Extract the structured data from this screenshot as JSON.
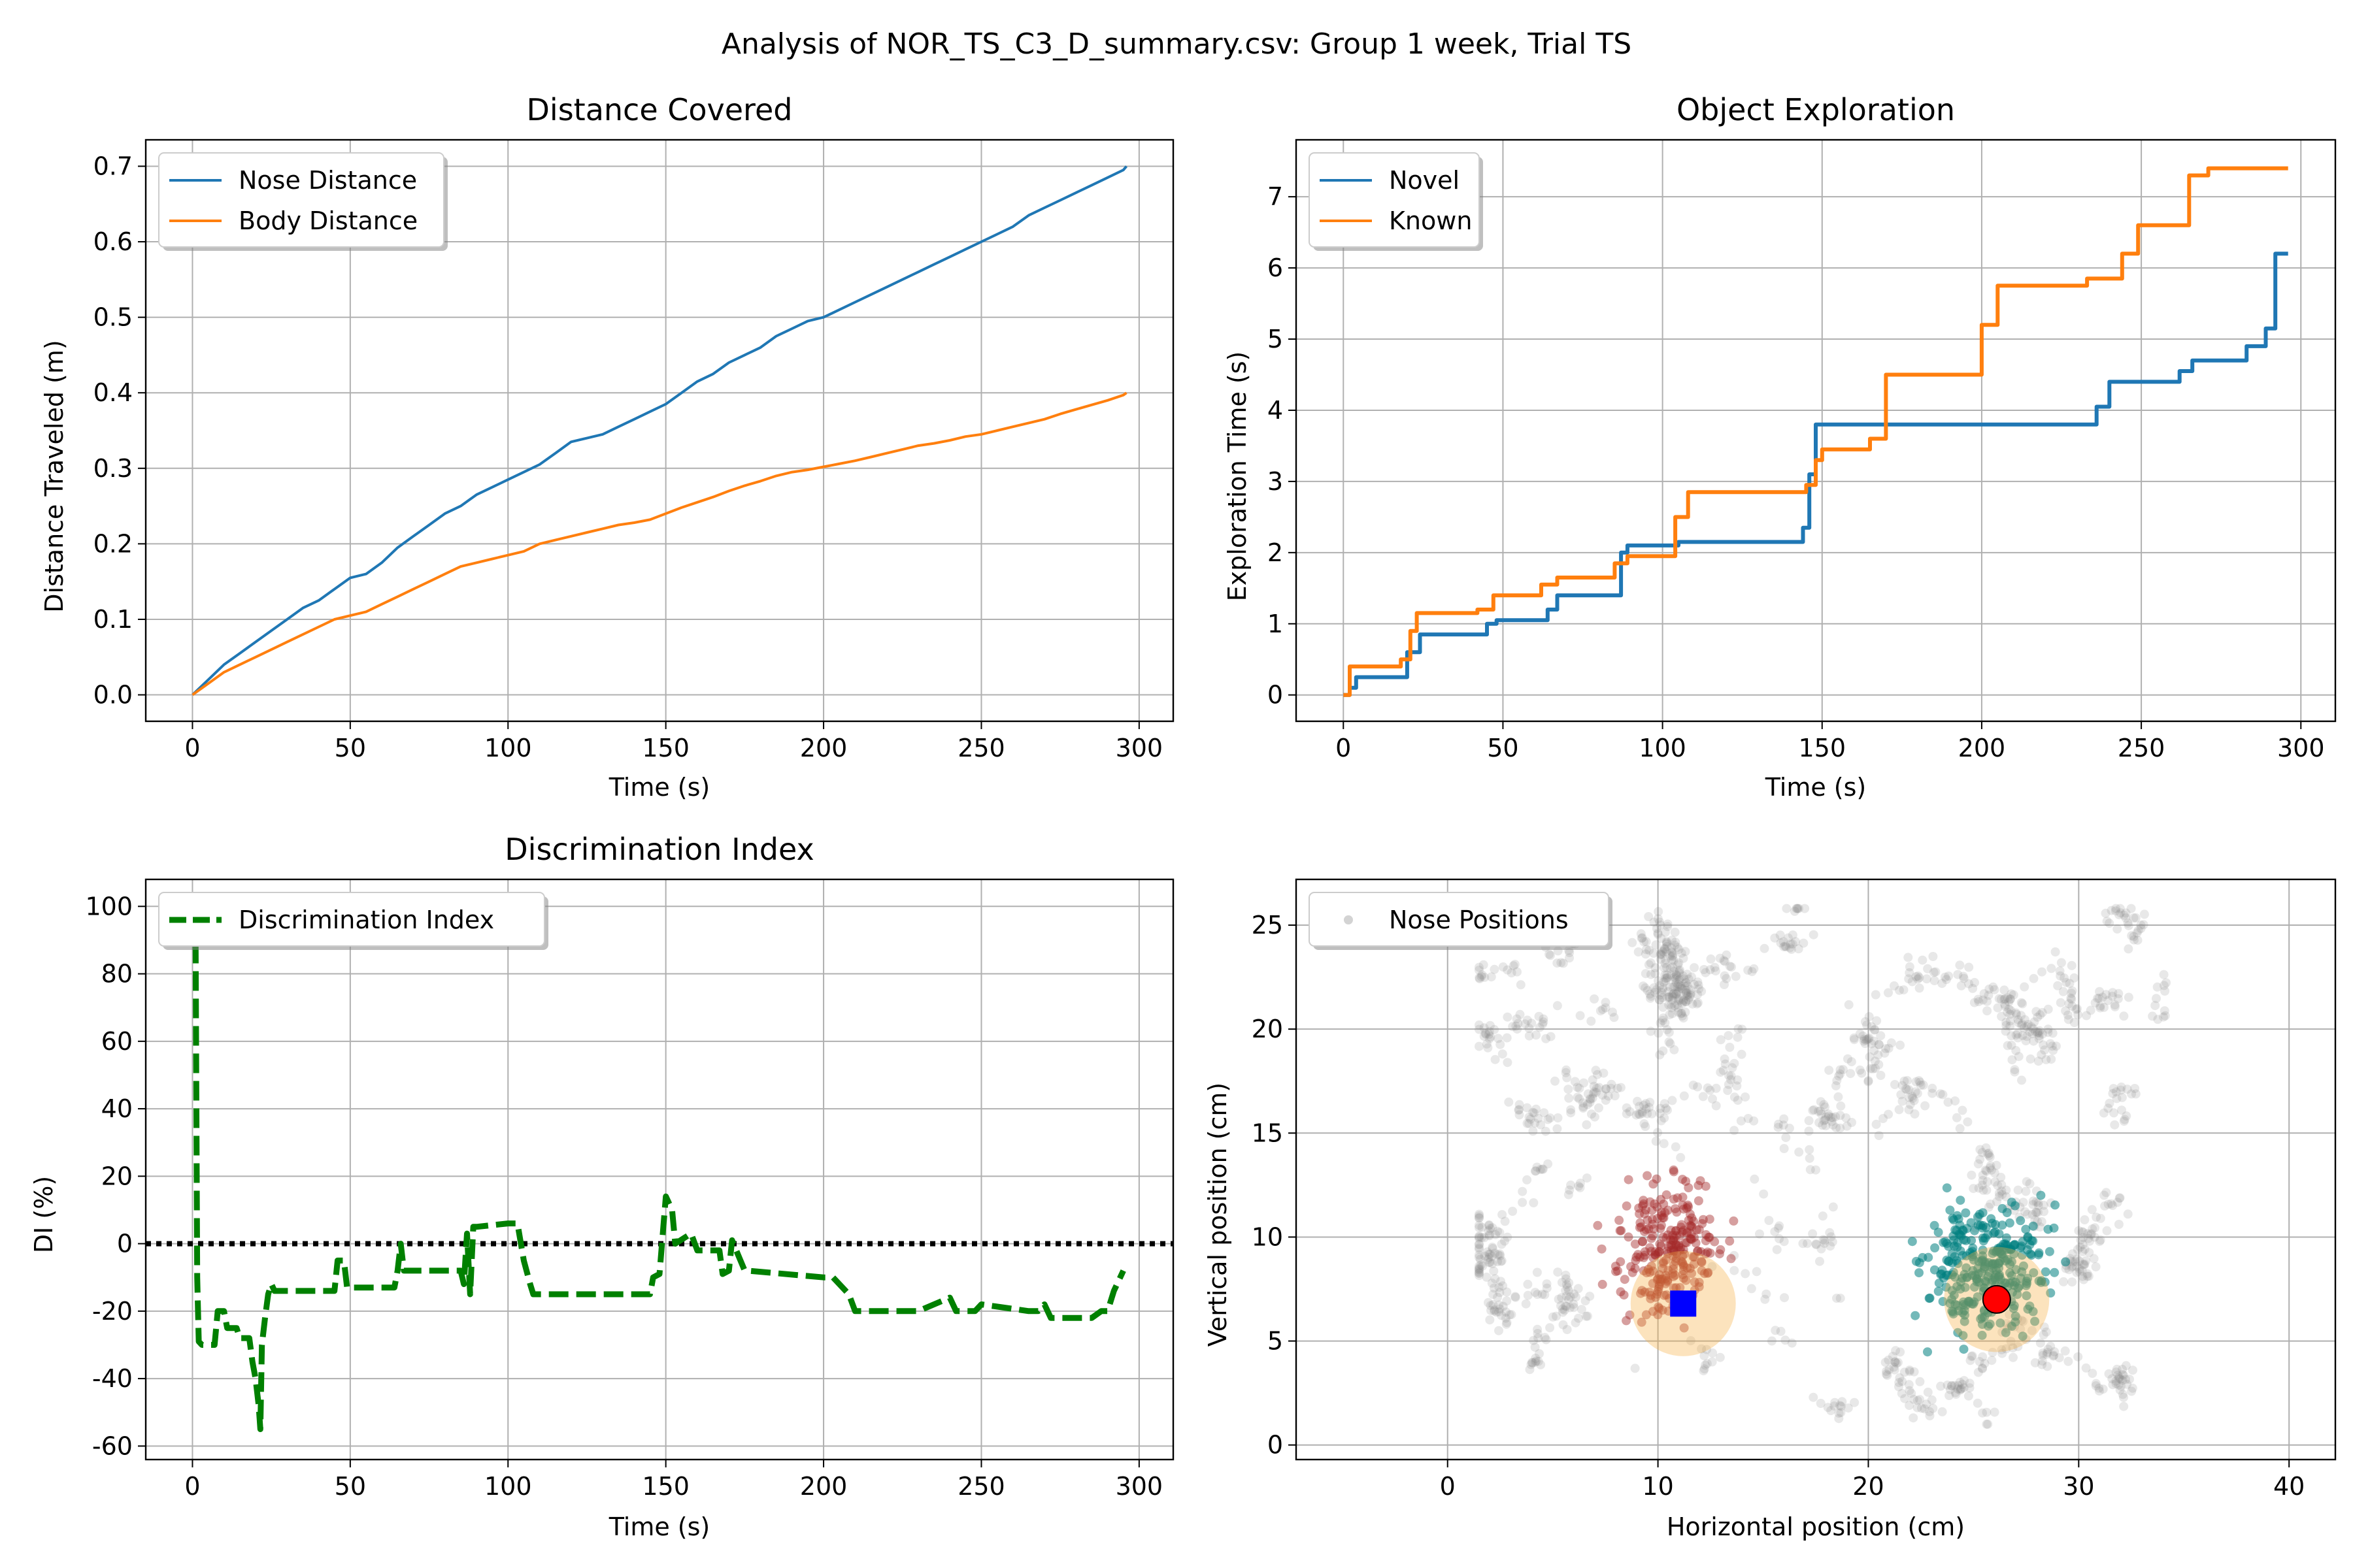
{
  "figure": {
    "suptitle": "Analysis of NOR_TS_C3_D_summary.csv: Group 1 week, Trial TS"
  },
  "chart_data": [
    {
      "id": "distance",
      "type": "line",
      "title": "Distance Covered",
      "xlabel": "Time (s)",
      "ylabel": "Distance Traveled (m)",
      "xlim": [
        -14.8,
        310.8
      ],
      "ylim": [
        -0.035,
        0.735
      ],
      "xticks": [
        0,
        50,
        100,
        150,
        200,
        250,
        300
      ],
      "yticks": [
        0.0,
        0.1,
        0.2,
        0.3,
        0.4,
        0.5,
        0.6,
        0.7
      ],
      "ytick_decimals": 1,
      "grid": true,
      "legend": "top-left",
      "series": [
        {
          "name": "Nose Distance",
          "color": "#1f77b4",
          "x": [
            0,
            5,
            10,
            15,
            20,
            25,
            30,
            35,
            40,
            45,
            50,
            55,
            60,
            65,
            70,
            75,
            80,
            85,
            90,
            95,
            100,
            105,
            110,
            115,
            120,
            125,
            130,
            135,
            140,
            145,
            150,
            155,
            160,
            165,
            170,
            175,
            180,
            185,
            190,
            195,
            200,
            205,
            210,
            215,
            220,
            225,
            230,
            235,
            240,
            245,
            250,
            255,
            260,
            265,
            270,
            275,
            280,
            285,
            290,
            295,
            296
          ],
          "y": [
            0.0,
            0.02,
            0.04,
            0.055,
            0.07,
            0.085,
            0.1,
            0.115,
            0.125,
            0.14,
            0.155,
            0.16,
            0.175,
            0.195,
            0.21,
            0.225,
            0.24,
            0.25,
            0.265,
            0.275,
            0.285,
            0.295,
            0.305,
            0.32,
            0.335,
            0.34,
            0.345,
            0.355,
            0.365,
            0.375,
            0.385,
            0.4,
            0.415,
            0.425,
            0.44,
            0.45,
            0.46,
            0.475,
            0.485,
            0.495,
            0.5,
            0.51,
            0.52,
            0.53,
            0.54,
            0.55,
            0.56,
            0.57,
            0.58,
            0.59,
            0.6,
            0.61,
            0.62,
            0.635,
            0.645,
            0.655,
            0.665,
            0.675,
            0.685,
            0.695,
            0.7
          ]
        },
        {
          "name": "Body Distance",
          "color": "#ff7f0e",
          "x": [
            0,
            5,
            10,
            15,
            20,
            25,
            30,
            35,
            40,
            45,
            50,
            55,
            60,
            65,
            70,
            75,
            80,
            85,
            90,
            95,
            100,
            105,
            110,
            115,
            120,
            125,
            130,
            135,
            140,
            145,
            150,
            155,
            160,
            165,
            170,
            175,
            180,
            185,
            190,
            195,
            200,
            205,
            210,
            215,
            220,
            225,
            230,
            235,
            240,
            245,
            250,
            255,
            260,
            265,
            270,
            275,
            280,
            285,
            290,
            295,
            296
          ],
          "y": [
            0.0,
            0.015,
            0.03,
            0.04,
            0.05,
            0.06,
            0.07,
            0.08,
            0.09,
            0.1,
            0.105,
            0.11,
            0.12,
            0.13,
            0.14,
            0.15,
            0.16,
            0.17,
            0.175,
            0.18,
            0.185,
            0.19,
            0.2,
            0.205,
            0.21,
            0.215,
            0.22,
            0.225,
            0.228,
            0.232,
            0.24,
            0.248,
            0.255,
            0.262,
            0.27,
            0.277,
            0.283,
            0.29,
            0.295,
            0.298,
            0.302,
            0.306,
            0.31,
            0.315,
            0.32,
            0.325,
            0.33,
            0.333,
            0.337,
            0.342,
            0.345,
            0.35,
            0.355,
            0.36,
            0.365,
            0.372,
            0.378,
            0.384,
            0.39,
            0.397,
            0.4
          ]
        }
      ]
    },
    {
      "id": "exploration",
      "type": "line",
      "title": "Object Exploration",
      "xlabel": "Time (s)",
      "ylabel": "Exploration Time (s)",
      "xlim": [
        -14.8,
        310.8
      ],
      "ylim": [
        -0.37,
        7.8
      ],
      "xticks": [
        0,
        50,
        100,
        150,
        200,
        250,
        300
      ],
      "yticks": [
        0,
        1,
        2,
        3,
        4,
        5,
        6,
        7
      ],
      "ytick_decimals": 0,
      "grid": true,
      "legend": "top-left",
      "series": [
        {
          "name": "Novel",
          "color": "#1f77b4",
          "stroke": 6,
          "x": [
            0,
            2,
            2,
            4,
            4,
            20,
            20,
            24,
            24,
            45,
            45,
            48,
            48,
            64,
            64,
            67,
            67,
            87,
            87,
            89,
            89,
            105,
            105,
            144,
            144,
            146,
            146,
            148,
            148,
            170,
            170,
            236,
            236,
            240,
            240,
            262,
            262,
            266,
            266,
            283,
            283,
            289,
            289,
            292,
            292,
            296
          ],
          "y": [
            0.0,
            0.0,
            0.1,
            0.1,
            0.25,
            0.25,
            0.6,
            0.6,
            0.85,
            0.85,
            1.0,
            1.0,
            1.05,
            1.05,
            1.2,
            1.2,
            1.4,
            1.4,
            2.0,
            2.0,
            2.1,
            2.1,
            2.15,
            2.15,
            2.35,
            2.35,
            3.1,
            3.1,
            3.8,
            3.8,
            3.8,
            3.8,
            4.05,
            4.05,
            4.4,
            4.4,
            4.55,
            4.55,
            4.7,
            4.7,
            4.9,
            4.9,
            5.15,
            5.15,
            6.2,
            6.2
          ]
        },
        {
          "name": "Known",
          "color": "#ff7f0e",
          "stroke": 6,
          "x": [
            0,
            2,
            2,
            18,
            18,
            21,
            21,
            23,
            23,
            42,
            42,
            47,
            47,
            62,
            62,
            67,
            67,
            85,
            85,
            89,
            89,
            104,
            104,
            108,
            108,
            145,
            145,
            148,
            148,
            150,
            150,
            165,
            165,
            170,
            170,
            200,
            200,
            205,
            205,
            233,
            233,
            244,
            244,
            249,
            249,
            265,
            265,
            271,
            271,
            290,
            290,
            296
          ],
          "y": [
            0.0,
            0.0,
            0.4,
            0.4,
            0.5,
            0.5,
            0.9,
            0.9,
            1.15,
            1.15,
            1.2,
            1.2,
            1.4,
            1.4,
            1.55,
            1.55,
            1.65,
            1.65,
            1.85,
            1.85,
            1.95,
            1.95,
            2.5,
            2.5,
            2.85,
            2.85,
            2.95,
            2.95,
            3.3,
            3.3,
            3.45,
            3.45,
            3.6,
            3.6,
            4.5,
            4.5,
            5.2,
            5.2,
            5.75,
            5.75,
            5.85,
            5.85,
            6.2,
            6.2,
            6.6,
            6.6,
            7.3,
            7.3,
            7.4,
            7.4,
            7.4,
            7.4
          ]
        }
      ]
    },
    {
      "id": "di",
      "type": "line",
      "title": "Discrimination Index",
      "xlabel": "Time (s)",
      "ylabel": "DI (%)",
      "xlim": [
        -14.8,
        310.8
      ],
      "ylim": [
        -64,
        108
      ],
      "xticks": [
        0,
        50,
        100,
        150,
        200,
        250,
        300
      ],
      "yticks": [
        -60,
        -40,
        -20,
        0,
        20,
        40,
        60,
        80,
        100
      ],
      "ytick_decimals": 0,
      "grid": true,
      "legend": "top-left",
      "reference_line": {
        "y": 0,
        "color": "#000000",
        "style": "dotted"
      },
      "series": [
        {
          "name": "Discrimination Index",
          "color": "#008000",
          "dashed": true,
          "stroke": 9,
          "x": [
            0,
            1,
            1.5,
            2,
            3,
            7,
            8,
            10,
            11,
            14,
            15,
            18,
            19,
            20,
            21,
            21.5,
            22,
            23,
            24,
            25,
            26,
            45,
            46,
            48,
            49,
            64,
            65,
            66,
            67,
            85,
            86,
            87,
            88,
            89,
            90,
            100,
            103,
            105,
            107,
            108,
            109,
            145,
            146,
            148,
            150,
            152,
            153,
            158,
            160,
            167,
            168,
            170,
            171,
            175,
            176,
            200,
            203,
            208,
            210,
            230,
            235,
            240,
            242,
            248,
            250,
            265,
            268,
            270,
            272,
            285,
            288,
            290,
            292,
            295
          ],
          "y": [
            88,
            88,
            -10,
            -29,
            -30,
            -30,
            -20,
            -20,
            -25,
            -25,
            -28,
            -28,
            -35,
            -40,
            -48,
            -55,
            -30,
            -22,
            -15,
            -12,
            -14,
            -14,
            -5,
            -5,
            -13,
            -13,
            -8,
            0,
            -8,
            -8,
            -12,
            3,
            -15,
            5,
            5,
            6,
            6,
            -5,
            -12,
            -15,
            -15,
            -15,
            -10,
            -9,
            14,
            10,
            0,
            3,
            -2,
            -2,
            -9,
            -8,
            1,
            -8,
            -8,
            -10,
            -10,
            -15,
            -20,
            -20,
            -18,
            -16,
            -20,
            -20,
            -18,
            -20,
            -20,
            -18,
            -22,
            -22,
            -20,
            -20,
            -14,
            -8
          ]
        }
      ]
    },
    {
      "id": "positions",
      "type": "scatter",
      "title": "",
      "xlabel": "Horizontal position (cm)",
      "ylabel": "Vertical position (cm)",
      "xlim": [
        -7.2,
        42.2
      ],
      "ylim": [
        -0.7,
        27.2
      ],
      "xticks": [
        0,
        10,
        20,
        30,
        40
      ],
      "yticks": [
        0,
        5,
        10,
        15,
        20,
        25
      ],
      "ytick_decimals": 0,
      "grid": true,
      "legend": "top-left",
      "legend_label": "Nose Positions",
      "point_color": "#808080",
      "clusters": [
        {
          "color": "#808080",
          "opacity": 0.18,
          "count": 1400,
          "xrange": [
            1.5,
            34.5
          ],
          "yrange": [
            1,
            25.8
          ],
          "avoid_center": true
        },
        {
          "color": "#a52a2a",
          "opacity": 0.45,
          "count": 260,
          "center": [
            10.5,
            9.5
          ],
          "spread": [
            2.4,
            3.2
          ]
        },
        {
          "color": "#008080",
          "opacity": 0.55,
          "count": 300,
          "center": [
            25.5,
            8.5
          ],
          "spread": [
            3.0,
            3.0
          ]
        }
      ],
      "objects": [
        {
          "name": "Known object",
          "shape": "square",
          "color": "#0000ff",
          "x": 11.2,
          "y": 6.8,
          "zone_radius": 2.5
        },
        {
          "name": "Novel object",
          "shape": "circle",
          "color": "#ff0000",
          "x": 26.1,
          "y": 7.0,
          "zone_radius": 2.5
        }
      ],
      "zone_color": "#f5b041"
    }
  ]
}
